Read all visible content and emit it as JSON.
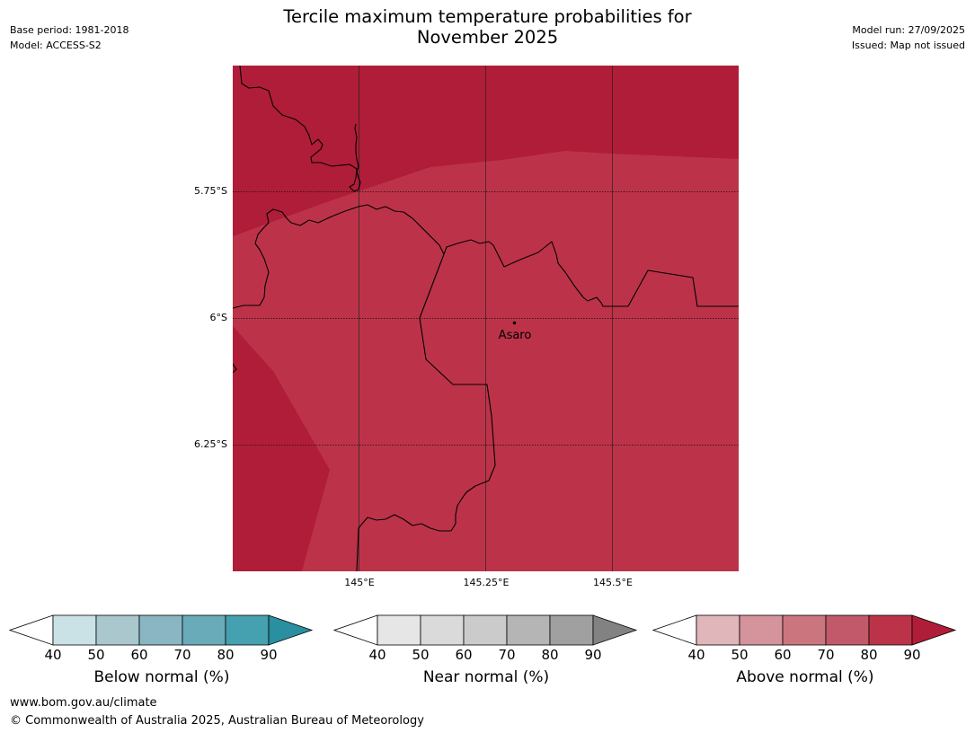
{
  "header": {
    "title_line1": "Tercile maximum temperature probabilities for",
    "title_line2": "November 2025",
    "base_period": "Base period: 1981-2018",
    "model": "Model: ACCESS-S2",
    "model_run": "Model run: 27/09/2025",
    "issued": "Issued: Map not issued"
  },
  "map": {
    "lat_labels": [
      "5.75°S",
      "6°S",
      "6.25°S"
    ],
    "lon_labels": [
      "145°E",
      "145.25°E",
      "145.5°E"
    ],
    "place_label": "Asaro",
    "colors": {
      "above_70_80": "#BC3349",
      "above_80_90": "#B01D38",
      "boundary": "#000000"
    }
  },
  "colorbars": [
    {
      "title": "Below normal (%)",
      "ticks": [
        "40",
        "50",
        "60",
        "70",
        "80",
        "90"
      ],
      "colors": [
        "#CAE2E6",
        "#A9C7CC",
        "#89B6C2",
        "#6AABB9",
        "#45A0B0"
      ],
      "extend_color": "#2A8FA0"
    },
    {
      "title": "Near normal (%)",
      "ticks": [
        "40",
        "50",
        "60",
        "70",
        "80",
        "90"
      ],
      "colors": [
        "#E6E6E6",
        "#DADADA",
        "#CBCBCB",
        "#B5B5B5",
        "#A0A0A0"
      ],
      "extend_color": "#828282"
    },
    {
      "title": "Above normal (%)",
      "ticks": [
        "40",
        "50",
        "60",
        "70",
        "80",
        "90"
      ],
      "colors": [
        "#E0B6BB",
        "#D5939C",
        "#CB767F",
        "#C2596A",
        "#BC3349"
      ],
      "extend_color": "#B01D38"
    }
  ],
  "footer": {
    "url": "www.bom.gov.au/climate",
    "copyright": "© Commonwealth of Australia 2025, Australian Bureau of Meteorology"
  }
}
